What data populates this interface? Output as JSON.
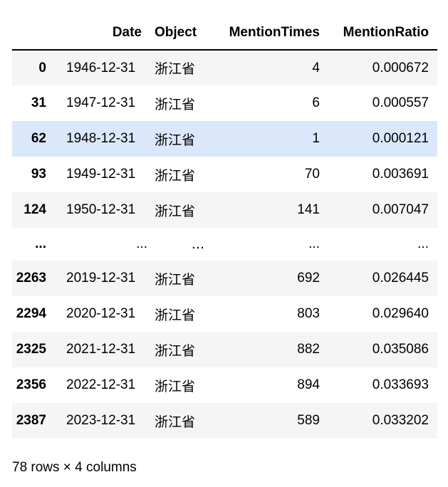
{
  "table": {
    "columns": [
      "",
      "Date",
      "Object",
      "MentionTimes",
      "MentionRatio"
    ],
    "rows": [
      {
        "index": "0",
        "date": "1946-12-31",
        "object": "浙江省",
        "mention_times": "4",
        "mention_ratio": "0.000672"
      },
      {
        "index": "31",
        "date": "1947-12-31",
        "object": "浙江省",
        "mention_times": "6",
        "mention_ratio": "0.000557"
      },
      {
        "index": "62",
        "date": "1948-12-31",
        "object": "浙江省",
        "mention_times": "1",
        "mention_ratio": "0.000121"
      },
      {
        "index": "93",
        "date": "1949-12-31",
        "object": "浙江省",
        "mention_times": "70",
        "mention_ratio": "0.003691"
      },
      {
        "index": "124",
        "date": "1950-12-31",
        "object": "浙江省",
        "mention_times": "141",
        "mention_ratio": "0.007047"
      },
      {
        "index": "...",
        "date": "...",
        "object": "...",
        "mention_times": "...",
        "mention_ratio": "..."
      },
      {
        "index": "2263",
        "date": "2019-12-31",
        "object": "浙江省",
        "mention_times": "692",
        "mention_ratio": "0.026445"
      },
      {
        "index": "2294",
        "date": "2020-12-31",
        "object": "浙江省",
        "mention_times": "803",
        "mention_ratio": "0.029640"
      },
      {
        "index": "2325",
        "date": "2021-12-31",
        "object": "浙江省",
        "mention_times": "882",
        "mention_ratio": "0.035086"
      },
      {
        "index": "2356",
        "date": "2022-12-31",
        "object": "浙江省",
        "mention_times": "894",
        "mention_ratio": "0.033693"
      },
      {
        "index": "2387",
        "date": "2023-12-31",
        "object": "浙江省",
        "mention_times": "589",
        "mention_ratio": "0.033202"
      }
    ]
  },
  "shape_text": "78 rows × 4 columns"
}
